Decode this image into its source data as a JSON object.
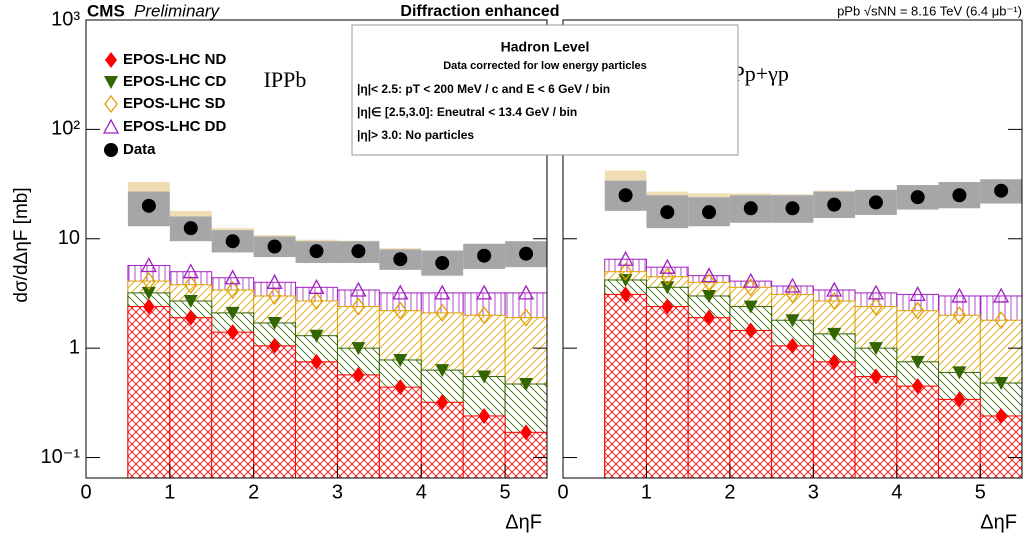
{
  "header": {
    "cms": "CMS",
    "preliminary": "Preliminary",
    "title": "Diffraction enhanced",
    "energy": "pPb  √sNN = 8.16 TeV (6.4 μb⁻¹)"
  },
  "info_box": {
    "title": "Hadron Level",
    "subtitle": "Data corrected for low energy particles",
    "lines": [
      "|η|< 2.5:  pT < 200 MeV / c  and  E < 6 GeV / bin",
      "|η|∈ [2.5,3.0]:  Eneutral < 13.4 GeV / bin",
      "|η|> 3.0:  No particles"
    ]
  },
  "chart_data": [
    {
      "type": "step-histogram",
      "label": "IPPb",
      "ylabel": "dσ/dΔηF [mb]",
      "xlabel": "ΔηF",
      "log_y": true,
      "xlim": [
        0,
        5.5
      ],
      "xticks": [
        0,
        1,
        2,
        3,
        4,
        5
      ],
      "ylim": [
        0.065,
        1000
      ],
      "yticks": [
        {
          "value": 1000,
          "label": "10³"
        },
        {
          "value": 100,
          "label": "10²"
        },
        10,
        1,
        {
          "value": 0.1,
          "label": "10⁻¹"
        }
      ],
      "bins": [
        0.5,
        1.0,
        1.5,
        2.0,
        2.5,
        3.0,
        3.5,
        4.0,
        4.5,
        5.0,
        5.5
      ],
      "series": [
        {
          "name": "EPOS-LHC ND",
          "color": "#ff0000",
          "values": [
            2.4,
            1.9,
            1.4,
            1.05,
            0.75,
            0.57,
            0.44,
            0.32,
            0.24,
            0.17
          ]
        },
        {
          "name": "EPOS-LHC CD",
          "color": "#336600",
          "values": [
            3.2,
            2.7,
            2.1,
            1.7,
            1.3,
            1.0,
            0.78,
            0.63,
            0.55,
            0.47
          ]
        },
        {
          "name": "EPOS-LHC SD",
          "color": "#e0a000",
          "values": [
            4.1,
            3.8,
            3.4,
            3.0,
            2.7,
            2.4,
            2.2,
            2.1,
            2.0,
            1.9
          ]
        },
        {
          "name": "EPOS-LHC DD",
          "color": "#a020c0",
          "values": [
            5.7,
            5.0,
            4.4,
            4.0,
            3.6,
            3.4,
            3.2,
            3.2,
            3.2,
            3.2
          ]
        },
        {
          "name": "Data",
          "color": "#000000",
          "values": [
            20,
            12.5,
            9.5,
            8.5,
            7.7,
            7.7,
            6.5,
            6,
            7,
            7.3
          ],
          "sys_low": [
            13,
            9.5,
            7.5,
            6.8,
            6,
            6,
            5.2,
            4.6,
            5.3,
            5.5
          ],
          "sys_high": [
            27,
            16,
            12,
            10.5,
            9.5,
            9.5,
            8,
            7.8,
            9,
            9.5
          ],
          "model_high": [
            33,
            18,
            12.5,
            10.8,
            9.8,
            9.6,
            8.2,
            7.8,
            9,
            9.5
          ]
        }
      ]
    },
    {
      "type": "step-histogram",
      "label": "IPp+γp",
      "xlabel": "ΔηF",
      "log_y": true,
      "xlim": [
        0,
        5.5
      ],
      "xticks": [
        0,
        1,
        2,
        3,
        4,
        5
      ],
      "ylim": [
        0.065,
        1000
      ],
      "yticks": [
        1000,
        100,
        10,
        1,
        0.1
      ],
      "bins": [
        0.5,
        1.0,
        1.5,
        2.0,
        2.5,
        3.0,
        3.5,
        4.0,
        4.5,
        5.0,
        5.5
      ],
      "series": [
        {
          "color": "#ff0000",
          "values": [
            3.1,
            2.4,
            1.9,
            1.45,
            1.05,
            0.75,
            0.55,
            0.45,
            0.34,
            0.24
          ]
        },
        {
          "color": "#336600",
          "values": [
            4.2,
            3.6,
            3.0,
            2.4,
            1.8,
            1.35,
            1.0,
            0.75,
            0.6,
            0.48
          ]
        },
        {
          "color": "#e0a000",
          "values": [
            5.0,
            4.5,
            4.0,
            3.6,
            3.1,
            2.7,
            2.4,
            2.2,
            2.0,
            1.8
          ]
        },
        {
          "color": "#a020c0",
          "values": [
            6.5,
            5.5,
            4.6,
            4.1,
            3.7,
            3.4,
            3.2,
            3.1,
            3.0,
            3.0
          ]
        },
        {
          "color": "#000000",
          "values": [
            25,
            17.5,
            17.5,
            19,
            19,
            20.5,
            21.5,
            24,
            25,
            27.5
          ],
          "sys_low": [
            18,
            12.5,
            13,
            14,
            14,
            15.5,
            16.5,
            18.5,
            19,
            21
          ],
          "sys_high": [
            34,
            25,
            24,
            25,
            25,
            27,
            28,
            31,
            33,
            35
          ],
          "model_high": [
            42,
            27,
            26,
            26,
            25.5,
            27.5,
            28,
            31,
            33,
            35
          ]
        }
      ]
    }
  ]
}
